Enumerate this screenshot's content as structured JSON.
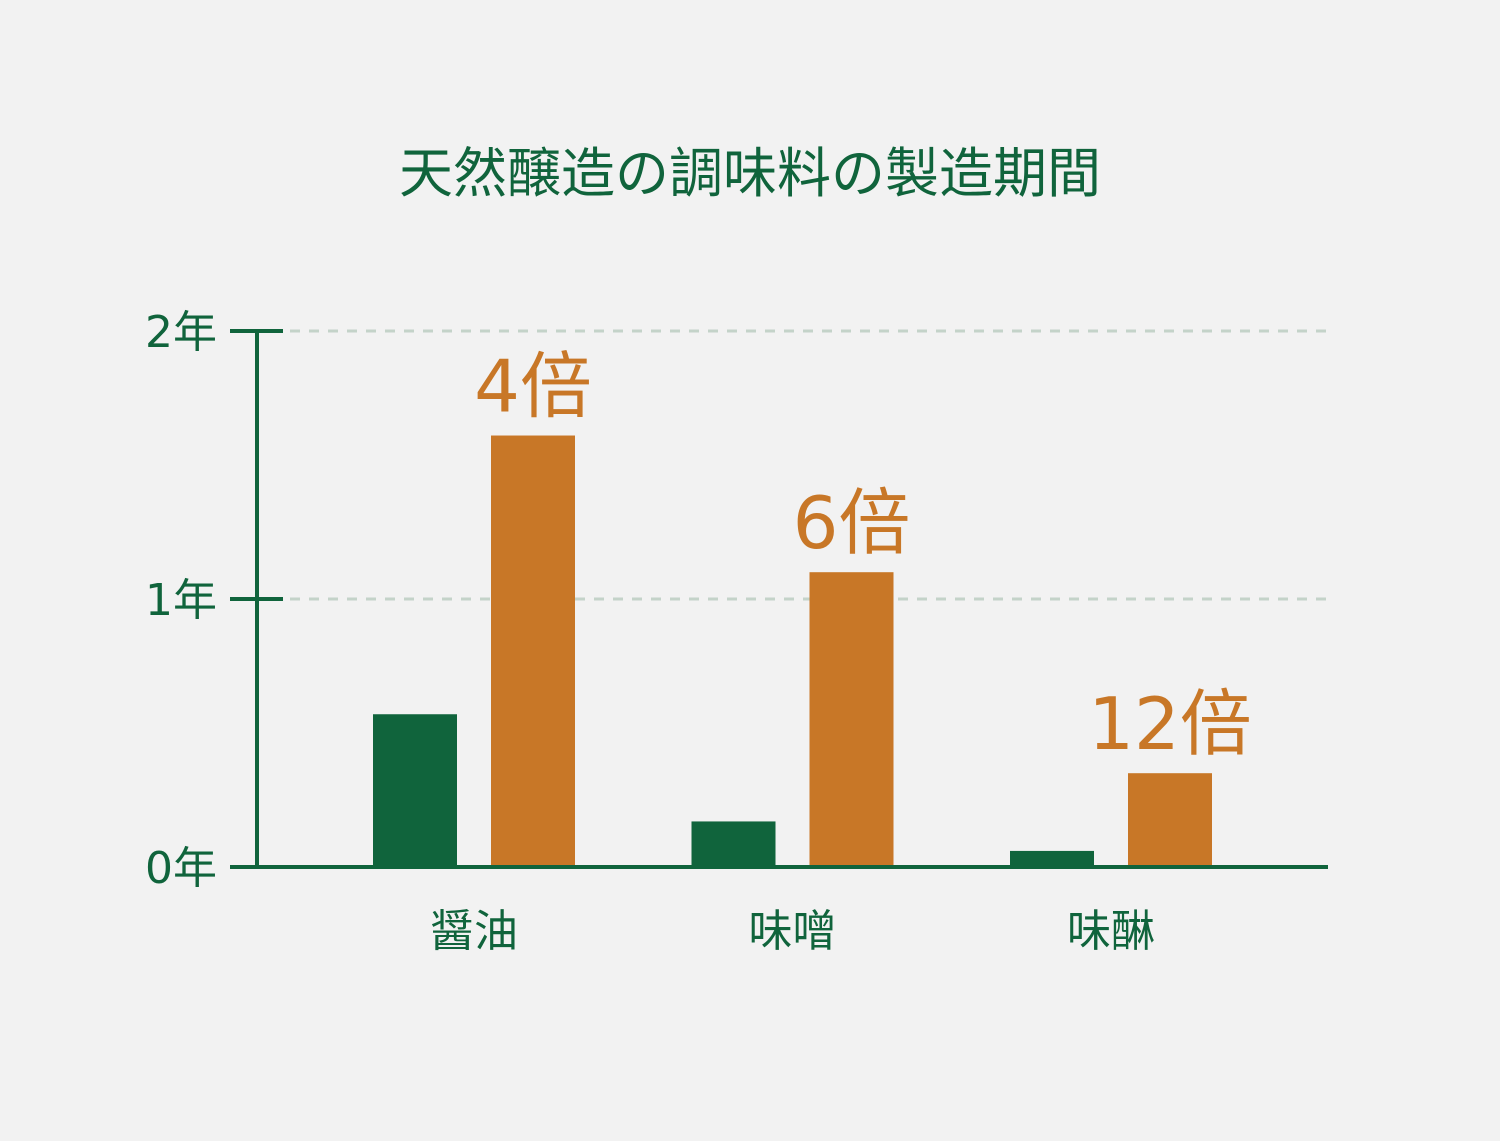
{
  "chart_data": {
    "type": "bar",
    "title": "天然醸造の調味料の製造期間",
    "categories": [
      "醤油",
      "味噌",
      "味醂"
    ],
    "series": [
      {
        "color": "#10643c",
        "values": [
          0.57,
          0.17,
          0.06
        ]
      },
      {
        "color": "#c87727",
        "values": [
          1.61,
          1.1,
          0.35
        ]
      }
    ],
    "annotations": [
      "4倍",
      "6倍",
      "12倍"
    ],
    "ylim": [
      0,
      2
    ],
    "yticks": [
      {
        "value": 0,
        "label": "0年"
      },
      {
        "value": 1,
        "label": "1年"
      },
      {
        "value": 2,
        "label": "2年"
      }
    ],
    "grid": true
  }
}
